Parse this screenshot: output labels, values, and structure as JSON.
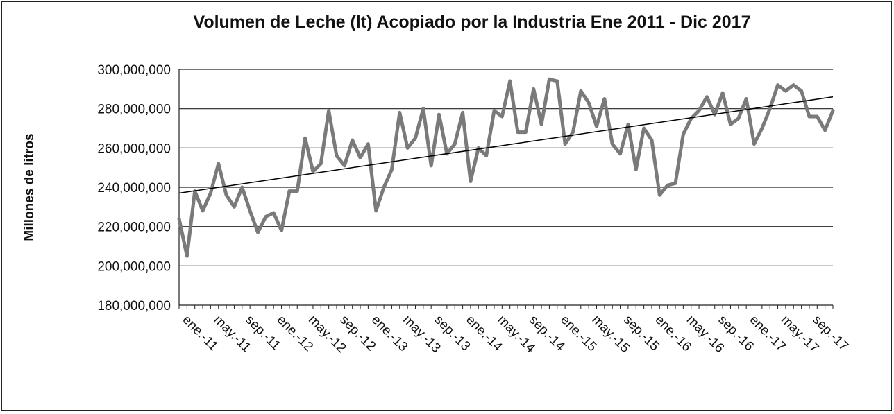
{
  "chart_data": {
    "type": "line",
    "title": "Volumen de Leche (lt) Acopiado por la Industria Ene 2011 -   Dic 2017",
    "y_label": "Millones de  litros",
    "categories": [
      "ene.-11",
      null,
      null,
      null,
      "may.-11",
      null,
      null,
      null,
      "sep.-11",
      null,
      null,
      null,
      "ene.-12",
      null,
      null,
      null,
      "may.-12",
      null,
      null,
      null,
      "sep.-12",
      null,
      null,
      null,
      "ene.-13",
      null,
      null,
      null,
      "may.-13",
      null,
      null,
      null,
      "sep.-13",
      null,
      null,
      null,
      "ene.-14",
      null,
      null,
      null,
      "may.-14",
      null,
      null,
      null,
      "sep.-14",
      null,
      null,
      null,
      "ene.-15",
      null,
      null,
      null,
      "may.-15",
      null,
      null,
      null,
      "sep.-15",
      null,
      null,
      null,
      "ene.-16",
      null,
      null,
      null,
      "may.-16",
      null,
      null,
      null,
      "sep.-16",
      null,
      null,
      null,
      "ene.-17",
      null,
      null,
      null,
      "may.-17",
      null,
      null,
      null,
      "sep.-17",
      null,
      null,
      null
    ],
    "series": [
      {
        "color": "#7a7a7a",
        "values": [
          224000000,
          205000000,
          238000000,
          228000000,
          237000000,
          252000000,
          236000000,
          230000000,
          240000000,
          228000000,
          217000000,
          225000000,
          227000000,
          218000000,
          238000000,
          238000000,
          265000000,
          248000000,
          252000000,
          279000000,
          256000000,
          251000000,
          264000000,
          255000000,
          262000000,
          228000000,
          240000000,
          249000000,
          278000000,
          260000000,
          265000000,
          280000000,
          251000000,
          277000000,
          257000000,
          262000000,
          278000000,
          243000000,
          260000000,
          256000000,
          279000000,
          276000000,
          294000000,
          268000000,
          268000000,
          290000000,
          272000000,
          295000000,
          294000000,
          262000000,
          268000000,
          289000000,
          283000000,
          271000000,
          285000000,
          262000000,
          257000000,
          272000000,
          249000000,
          270000000,
          264000000,
          236000000,
          241000000,
          242000000,
          267000000,
          275000000,
          279000000,
          286000000,
          277000000,
          288000000,
          272000000,
          275000000,
          285000000,
          262000000,
          270000000,
          280000000,
          292000000,
          289000000,
          292000000,
          289000000,
          276000000,
          276000000,
          269000000,
          279000000
        ]
      }
    ],
    "trend": {
      "color": "#000000",
      "values": [
        237000000,
        286000000
      ]
    },
    "ylim": [
      180000000,
      300000000
    ],
    "yticks": [
      {
        "value": 180000000,
        "label": "180,000,000"
      },
      {
        "value": 200000000,
        "label": "200,000,000"
      },
      {
        "value": 220000000,
        "label": "220,000,000"
      },
      {
        "value": 240000000,
        "label": "240,000,000"
      },
      {
        "value": 260000000,
        "label": "260,000,000"
      },
      {
        "value": 280000000,
        "label": "280,000,000"
      },
      {
        "value": 300000000,
        "label": "300,000,000"
      }
    ],
    "grid": true
  }
}
